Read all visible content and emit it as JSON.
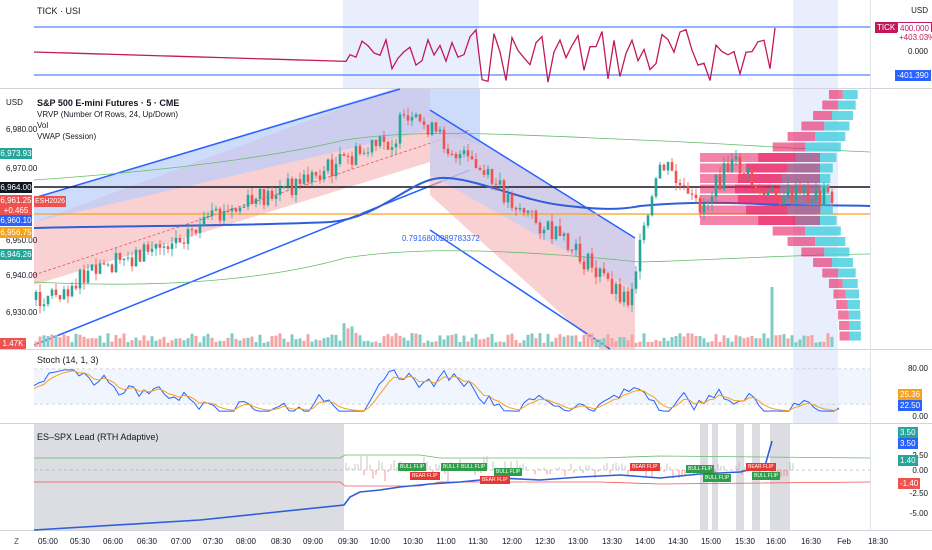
{
  "colors": {
    "up": "#26a69a",
    "down": "#ef5350",
    "vwap": "#2f5ed8",
    "tick": "#c2185b",
    "channel_blue": "#2962ff",
    "orange": "#f7a21b",
    "bg_session": "#e8eefc",
    "pink": "#e91e63",
    "cyan": "#4dd0e1"
  },
  "pane_tick": {
    "title": "TICK · USI",
    "currency": "USD",
    "badge_label": "TICK",
    "badge_value": "400.000",
    "badge_change": "+403.03%",
    "zero_label": "0.000",
    "low_label": "-401.390"
  },
  "pane_main": {
    "currency": "USD",
    "title": "S&P 500 E-mini Futures · 5 · CME",
    "vrvp": "VRVP (Number Of Rows, 24, Up/Down)",
    "vol": "Vol",
    "vwap": "VWAP (Session)",
    "price_ticks": [
      "6,980.00",
      "6,970.00",
      "6,950.00",
      "6,940.00",
      "6,930.00"
    ],
    "left_tags": [
      {
        "text": "6,973.93",
        "color": "#26a69a"
      },
      {
        "text": "6,964.00",
        "color": "#131722"
      },
      {
        "text": "6,961.25",
        "color": "#ef5350"
      },
      {
        "text": "+0.465",
        "color": "#ef5350"
      },
      {
        "text": "6,960.10",
        "color": "#2962ff"
      },
      {
        "text": "6,956.75",
        "color": "#f7a21b"
      },
      {
        "text": "6,946.26",
        "color": "#26a69a"
      },
      {
        "text": "1.47K",
        "color": "#ef5350"
      }
    ],
    "symbol_tag": "ESH2026",
    "fib_label": "0.7916800289783372"
  },
  "pane_stoch": {
    "title": "Stoch (14, 1, 3)",
    "level_high": "80.00",
    "level_low": "0.00",
    "k_value": "25.36",
    "d_value": "22.50"
  },
  "pane_lead": {
    "title": "ES–SPX Lead (RTH Adaptive)",
    "axis": [
      "2.50",
      "0.00",
      "-2.50",
      "-5.00"
    ],
    "tags": [
      {
        "text": "3.50",
        "color": "#26a69a"
      },
      {
        "text": "3.50",
        "color": "#2962ff"
      },
      {
        "text": "1.40",
        "color": "#26a69a"
      },
      {
        "text": "-1.40",
        "color": "#ef5350"
      }
    ],
    "flips": [
      {
        "text": "BULL FLIP",
        "kind": "bull"
      },
      {
        "text": "BEAR FLIP",
        "kind": "bear"
      },
      {
        "text": "BULL FLIP",
        "kind": "bull"
      },
      {
        "text": "BULL FLIP",
        "kind": "bull"
      },
      {
        "text": "BEAR FLIP",
        "kind": "bear"
      },
      {
        "text": "BULL FLIP",
        "kind": "bull"
      },
      {
        "text": "BEAR FLIP",
        "kind": "bear"
      },
      {
        "text": "BULL FLIP",
        "kind": "bull"
      },
      {
        "text": "BULL FLIP",
        "kind": "bull"
      },
      {
        "text": "BEAR FLIP",
        "kind": "bear"
      },
      {
        "text": "BULL FLIP",
        "kind": "bull"
      }
    ]
  },
  "x_axis": [
    "05:00",
    "05:30",
    "06:00",
    "06:30",
    "07:00",
    "07:30",
    "08:00",
    "08:30",
    "09:00",
    "09:30",
    "10:00",
    "10:30",
    "11:00",
    "11:30",
    "12:00",
    "12:30",
    "13:00",
    "13:30",
    "14:00",
    "14:30",
    "15:00",
    "15:30",
    "16:00",
    "16:30",
    "Feb",
    "18:30"
  ],
  "zoom_icon": "z-icon"
}
